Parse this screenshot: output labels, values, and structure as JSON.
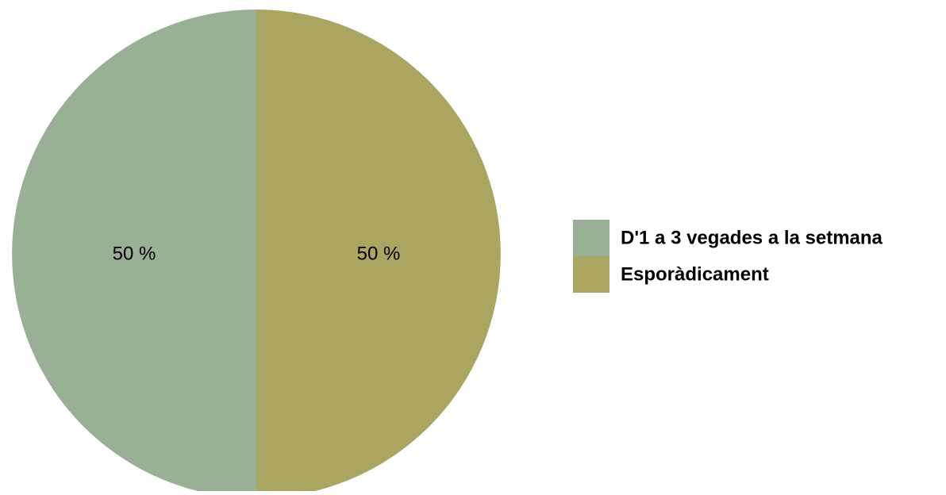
{
  "chart_data": {
    "type": "pie",
    "slices": [
      {
        "label": "D'1 a 3 vegades a la setmana",
        "value": 50,
        "display": "50 %",
        "color": "#99b096"
      },
      {
        "label": "Esporàdicament",
        "value": 50,
        "display": "50 %",
        "color": "#aba562"
      }
    ],
    "legend_position": "right"
  }
}
